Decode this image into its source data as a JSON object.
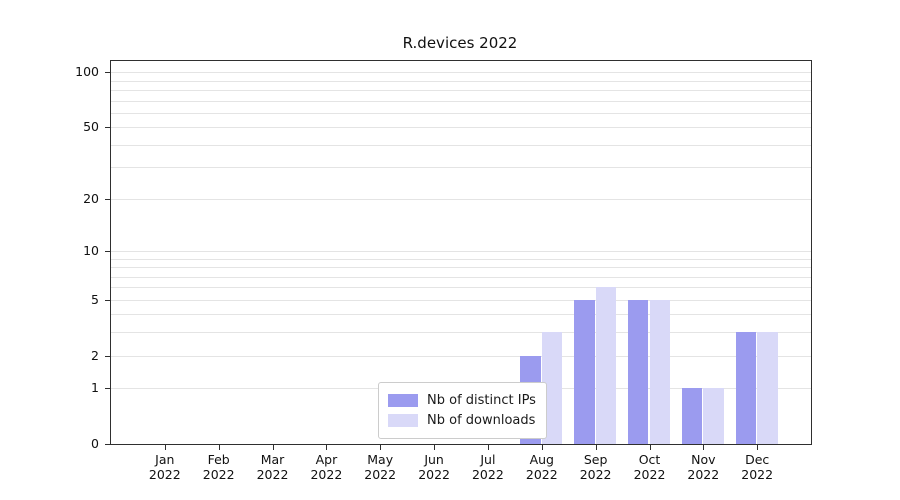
{
  "title": "R.devices 2022",
  "chart_data": {
    "type": "bar",
    "title": "R.devices 2022",
    "months": [
      "Jan",
      "Feb",
      "Mar",
      "Apr",
      "May",
      "Jun",
      "Jul",
      "Aug",
      "Sep",
      "Oct",
      "Nov",
      "Dec"
    ],
    "years": [
      "2022",
      "2022",
      "2022",
      "2022",
      "2022",
      "2022",
      "2022",
      "2022",
      "2022",
      "2022",
      "2022",
      "2022"
    ],
    "series": [
      {
        "name": "Nb of distinct IPs",
        "color": "#9b9bef",
        "values": [
          0,
          0,
          0,
          0,
          0,
          0,
          0,
          2,
          5,
          5,
          1,
          3
        ]
      },
      {
        "name": "Nb of downloads",
        "color": "#d9d9f8",
        "values": [
          0,
          0,
          0,
          0,
          0,
          0,
          0,
          3,
          6,
          5,
          1,
          3
        ]
      }
    ],
    "yscale": "log1p",
    "yticks": [
      0,
      1,
      2,
      5,
      10,
      20,
      50,
      100
    ],
    "ylim": [
      0,
      115
    ],
    "gridlines": [
      1,
      2,
      3,
      4,
      5,
      6,
      7,
      8,
      9,
      10,
      20,
      30,
      40,
      50,
      60,
      70,
      80,
      90,
      100
    ],
    "grid": true,
    "legend_position": "lower center inside"
  }
}
